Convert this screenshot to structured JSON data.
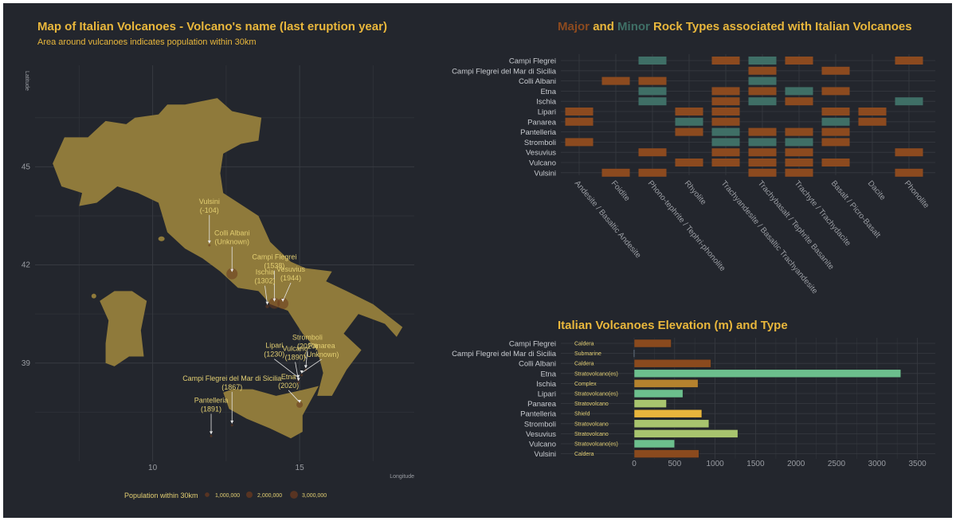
{
  "colors": {
    "background": "#23262d",
    "title": "#e9b73c",
    "land": "#8f7a3b",
    "major": "#8c4a1f",
    "minor": "#3f6f66",
    "grid": "#373a41",
    "axis_text": "#9a9da3"
  },
  "map": {
    "title": "Map of Italian Volcanoes - Volcano's name (last eruption year)",
    "subtitle": "Area around vulcanoes indicates population within 30km",
    "ylabel": "Latitude",
    "xlabel": "Longitude",
    "legend_title": "Population within 30km",
    "legend_items": [
      "1,000,000",
      "2,000,000",
      "3,000,000"
    ]
  },
  "rocks": {
    "title_major": "Major",
    "title_and": "and",
    "title_minor": "Minor",
    "title_rest": "Rock Types associated with Italian Volcanoes"
  },
  "elevation": {
    "title": "Italian Volcanoes Elevation (m) and Type"
  },
  "chart_data": [
    {
      "type": "scatter",
      "title": "Map of Italian Volcanoes - Volcano's name (last eruption year)",
      "subtitle": "Area around vulcanoes indicates population within 30km",
      "xlabel": "Longitude",
      "ylabel": "Latitude",
      "x_ticks": [
        10,
        15
      ],
      "y_ticks": [
        39,
        42,
        45
      ],
      "xlim": [
        6.0,
        18.9
      ],
      "ylim": [
        36.0,
        48.1
      ],
      "points": [
        {
          "name": "Vulsini",
          "year": "(-104)",
          "lon": 11.93,
          "lat": 42.6,
          "pop": 100000
        },
        {
          "name": "Colli Albani",
          "year": "(Unknown)",
          "lon": 12.7,
          "lat": 41.73,
          "pop": 3000000
        },
        {
          "name": "Campi Flegrei",
          "year": "(1538)",
          "lon": 14.14,
          "lat": 40.83,
          "pop": 3000000
        },
        {
          "name": "Ischia",
          "year": "(1302)",
          "lon": 13.9,
          "lat": 40.73,
          "pop": 300000
        },
        {
          "name": "Vesuvius",
          "year": "(1944)",
          "lon": 14.43,
          "lat": 40.82,
          "pop": 3000000
        },
        {
          "name": "Panarea",
          "year": "(Unknown)",
          "lon": 15.07,
          "lat": 38.63,
          "pop": 20000
        },
        {
          "name": "Vulcano",
          "year": "(1890)",
          "lon": 14.96,
          "lat": 38.4,
          "pop": 20000
        },
        {
          "name": "Lipari",
          "year": "(1230)",
          "lon": 14.95,
          "lat": 38.49,
          "pop": 20000
        },
        {
          "name": "Stromboli",
          "year": "(2020)",
          "lon": 15.21,
          "lat": 38.79,
          "pop": 10000
        },
        {
          "name": "Etna",
          "year": "(2020)",
          "lon": 15.0,
          "lat": 37.73,
          "pop": 1000000
        },
        {
          "name": "Campi Flegrei del Mar di Sicilia",
          "year": "(1867)",
          "lon": 12.7,
          "lat": 37.1,
          "pop": 100000
        },
        {
          "name": "Pantelleria",
          "year": "(1891)",
          "lon": 11.99,
          "lat": 36.77,
          "pop": 10000
        }
      ],
      "legend": [
        "1,000,000",
        "2,000,000",
        "3,000,000"
      ]
    },
    {
      "type": "heatmap",
      "title": "Major and Minor Rock Types associated with Italian Volcanoes",
      "rows": [
        "Campi Flegrei",
        "Campi Flegrei del Mar di Sicilia",
        "Colli Albani",
        "Etna",
        "Ischia",
        "Lipari",
        "Panarea",
        "Pantelleria",
        "Stromboli",
        "Vesuvius",
        "Vulcano",
        "Vulsini"
      ],
      "columns": [
        "Andesite / Basaltic Andesite",
        "Foidite",
        "Phono-tephrite / Tephri-phonolite",
        "Rhyolite",
        "Trachyandesite / Basaltic Trachyandesite",
        "Trachybasalt / Tephrite Basanite",
        "Trachyte / Trachydacite",
        "Basalt / Picro-Basalt",
        "Dacite",
        "Phonolite"
      ],
      "cells_legend": {
        "M": "Major",
        "m": "Minor"
      },
      "matrix": [
        [
          "",
          "",
          "m",
          "",
          "M",
          "m",
          "M",
          "",
          "",
          "M"
        ],
        [
          "",
          "",
          "",
          "",
          "",
          "M",
          "",
          "M",
          "",
          ""
        ],
        [
          "",
          "M",
          "M",
          "",
          "",
          "m",
          "",
          "",
          "",
          ""
        ],
        [
          "",
          "",
          "m",
          "",
          "M",
          "M",
          "m",
          "M",
          "",
          ""
        ],
        [
          "",
          "",
          "m",
          "",
          "M",
          "m",
          "M",
          "",
          "",
          "m"
        ],
        [
          "M",
          "",
          "",
          "M",
          "M",
          "",
          "",
          "M",
          "M",
          ""
        ],
        [
          "M",
          "",
          "",
          "m",
          "M",
          "",
          "",
          "m",
          "M",
          ""
        ],
        [
          "",
          "",
          "",
          "M",
          "m",
          "M",
          "M",
          "M",
          "",
          ""
        ],
        [
          "M",
          "",
          "",
          "",
          "m",
          "m",
          "m",
          "M",
          "",
          ""
        ],
        [
          "",
          "",
          "M",
          "",
          "M",
          "M",
          "M",
          "",
          "",
          "M"
        ],
        [
          "",
          "",
          "",
          "M",
          "M",
          "M",
          "M",
          "M",
          "",
          ""
        ],
        [
          "",
          "M",
          "M",
          "",
          "",
          "M",
          "M",
          "",
          "",
          "M"
        ]
      ]
    },
    {
      "type": "bar",
      "orientation": "horizontal",
      "title": "Italian Volcanoes Elevation (m) and Type",
      "categories": [
        "Campi Flegrei",
        "Campi Flegrei del Mar di Sicilia",
        "Colli Albani",
        "Etna",
        "Ischia",
        "Lipari",
        "Panarea",
        "Pantelleria",
        "Stromboli",
        "Vesuvius",
        "Vulcano",
        "Vulsini"
      ],
      "values": [
        458,
        -8,
        949,
        3295,
        789,
        602,
        399,
        836,
        924,
        1281,
        500,
        800
      ],
      "types": [
        "Caldera",
        "Submarine",
        "Caldera",
        "Stratovolcano(es)",
        "Complex",
        "Stratovolcano(es)",
        "Stratovolcano",
        "Shield",
        "Stratovolcano",
        "Stratovolcano",
        "Stratovolcano(es)",
        "Caldera"
      ],
      "type_colors": {
        "Caldera": "#8a4a1e",
        "Submarine": "#6b7a8a",
        "Stratovolcano(es)": "#6cbf8d",
        "Complex": "#b5822e",
        "Stratovolcano": "#a8c46e",
        "Shield": "#e8b53c"
      },
      "x_ticks": [
        0,
        500,
        1000,
        1500,
        2000,
        2500,
        3000,
        3500
      ],
      "xlim": [
        -100,
        3700
      ]
    }
  ]
}
